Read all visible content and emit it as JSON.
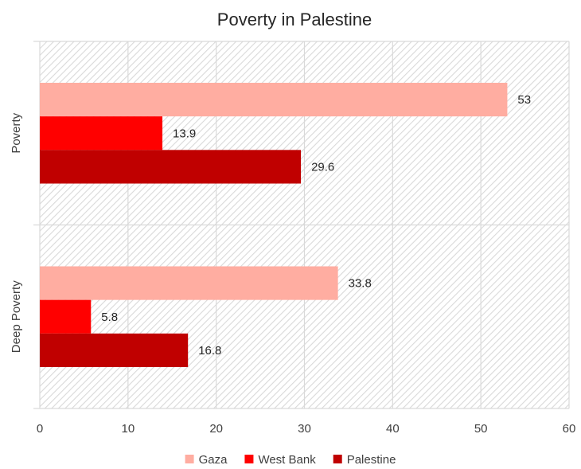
{
  "chart_data": {
    "type": "bar",
    "orientation": "horizontal",
    "title": "Poverty in Palestine",
    "categories": [
      "Poverty",
      "Deep Poverty"
    ],
    "series": [
      {
        "name": "Gaza",
        "color": "#FFADA1",
        "values": [
          53,
          33.8
        ]
      },
      {
        "name": "West Bank",
        "color": "#FF0000",
        "values": [
          13.9,
          5.8
        ]
      },
      {
        "name": "Palestine",
        "color": "#C00000",
        "values": [
          29.6,
          16.8
        ]
      }
    ],
    "xlim": [
      0,
      60
    ],
    "xticks": [
      0,
      10,
      20,
      30,
      40,
      50,
      60
    ],
    "grid": true,
    "legend": "bottom",
    "data_labels": true,
    "background_pattern": "diagonal-hatch"
  }
}
